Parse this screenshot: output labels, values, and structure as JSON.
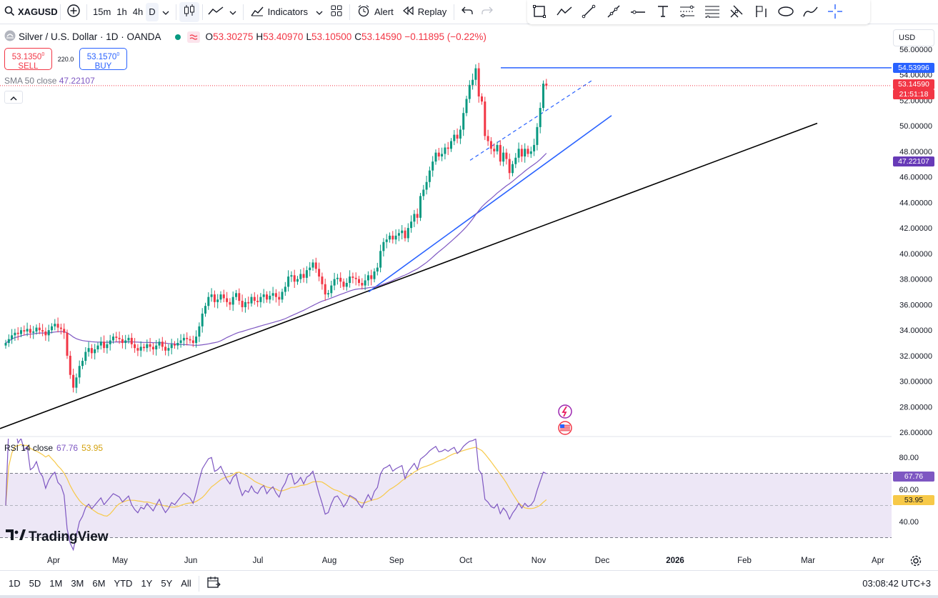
{
  "toolbar": {
    "symbol": "XAGUSD",
    "intervals": [
      "15m",
      "1h",
      "4h",
      "D"
    ],
    "active_interval": "D",
    "indicators_label": "Indicators",
    "alert_label": "Alert",
    "replay_label": "Replay"
  },
  "drawing_tools": [
    "rectangle-icon",
    "polyline-icon",
    "trendline-icon",
    "ray-icon",
    "horizontal-line-icon",
    "text-icon",
    "pattern-icon",
    "fib-icon",
    "pitchfork-icon",
    "flag-icon",
    "ellipse-icon",
    "brush-icon",
    "crosshair-icon"
  ],
  "legend": {
    "title": "Silver / U.S. Dollar · 1D · OANDA",
    "o_label": "O",
    "o_value": "53.30275",
    "h_label": "H",
    "h_value": "53.40970",
    "l_label": "L",
    "l_value": "53.10500",
    "c_label": "C",
    "c_value": "53.14590",
    "change": "−0.11895 (−0.22%)"
  },
  "trade": {
    "sell_price": "53.1350",
    "sell_sup": "0",
    "sell_label": "SELL",
    "spread": "220.0",
    "buy_price": "53.1570",
    "buy_sup": "0",
    "buy_label": "BUY"
  },
  "sma": {
    "label": "SMA 50 close",
    "value": "47.22107"
  },
  "currency": "USD",
  "price_axis": {
    "ticks": [
      "56.00000",
      "54.00000",
      "52.00000",
      "50.00000",
      "48.00000",
      "46.00000",
      "44.00000",
      "42.00000",
      "40.00000",
      "38.00000",
      "36.00000",
      "34.00000",
      "32.00000",
      "30.00000",
      "28.00000",
      "26.00000"
    ],
    "hline_label": "54.53996",
    "last_price_label": "53.14590",
    "countdown": "21:51:18",
    "sma_label": "47.22107"
  },
  "rsi": {
    "label": "RSI 14 close",
    "value": "67.76",
    "ma_value": "53.95",
    "ticks": [
      "80.00",
      "60.00",
      "40.00"
    ]
  },
  "time_axis": [
    "Apr",
    "May",
    "Jun",
    "Jul",
    "Aug",
    "Sep",
    "Oct",
    "Nov",
    "Dec",
    "2026",
    "Feb",
    "Mar",
    "Apr"
  ],
  "logo_text": "TradingView",
  "ranges": [
    "1D",
    "5D",
    "1M",
    "3M",
    "6M",
    "YTD",
    "1Y",
    "5Y",
    "All"
  ],
  "clock": "03:08:42 UTC+3",
  "colors": {
    "up": "#089981",
    "down": "#f23645",
    "sma": "#7e57c2",
    "trend_blue": "#2962ff",
    "trend_black": "#000000",
    "rsi_line": "#7e57c2",
    "rsi_ma": "#f7c948",
    "rsi_band": "#ede7f6"
  },
  "chart_data": {
    "type": "candlestick",
    "ylim": [
      26,
      56
    ],
    "x_start": "2025-03-20",
    "closes": [
      33.0,
      33.3,
      33.6,
      33.8,
      33.7,
      34.0,
      33.9,
      34.1,
      33.8,
      33.9,
      34.2,
      34.0,
      33.9,
      33.6,
      34.0,
      34.3,
      34.5,
      34.2,
      34.1,
      33.8,
      32.0,
      30.5,
      29.5,
      30.3,
      31.2,
      31.6,
      32.3,
      32.6,
      32.2,
      32.5,
      32.8,
      33.1,
      32.6,
      32.9,
      33.2,
      33.5,
      33.4,
      33.3,
      33.0,
      33.2,
      33.4,
      32.9,
      32.6,
      32.4,
      32.7,
      32.6,
      32.9,
      32.7,
      32.5,
      32.8,
      33.1,
      32.7,
      32.4,
      32.6,
      32.9,
      32.8,
      33.0,
      33.2,
      33.4,
      33.3,
      33.2,
      33.0,
      33.5,
      34.3,
      35.3,
      35.9,
      36.6,
      36.8,
      36.2,
      36.4,
      36.8,
      36.5,
      36.2,
      36.0,
      36.6,
      36.9,
      36.3,
      35.8,
      36.2,
      36.1,
      36.6,
      36.3,
      36.2,
      36.6,
      36.8,
      36.4,
      36.7,
      36.9,
      36.6,
      36.4,
      37.0,
      37.4,
      38.2,
      38.3,
      37.8,
      38.0,
      38.4,
      38.1,
      38.7,
      38.9,
      39.3,
      38.8,
      38.2,
      37.6,
      36.8,
      36.9,
      37.5,
      38.0,
      38.1,
      37.8,
      37.4,
      37.7,
      38.2,
      38.1,
      38.0,
      37.7,
      37.5,
      37.9,
      38.3,
      38.0,
      38.6,
      38.9,
      40.2,
      40.9,
      41.1,
      41.4,
      41.1,
      41.4,
      41.6,
      41.8,
      41.2,
      42.0,
      42.5,
      43.1,
      42.8,
      44.5,
      45.0,
      45.6,
      46.5,
      47.2,
      47.9,
      47.6,
      47.8,
      48.3,
      48.2,
      48.8,
      49.3,
      49.0,
      49.7,
      51.0,
      52.1,
      53.2,
      53.6,
      54.5,
      52.3,
      51.9,
      49.2,
      48.8,
      48.2,
      48.0,
      48.5,
      47.2,
      47.9,
      47.4,
      46.3,
      47.0,
      47.5,
      48.2,
      47.6,
      48.2,
      47.8,
      48.0,
      48.5,
      49.9,
      51.4,
      53.3,
      53.15
    ],
    "sma": {
      "name": "SMA 50 close",
      "last": 47.22107
    },
    "rsi": {
      "name": "RSI 14 close",
      "last": 67.76,
      "ma_last": 53.95,
      "ylim": [
        20,
        90
      ]
    }
  }
}
